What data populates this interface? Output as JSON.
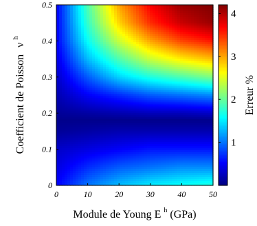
{
  "chart_data": {
    "type": "heatmap",
    "title": "",
    "x_axis": {
      "label": "Module de Young E",
      "label_superscript": "h",
      "label_unit": "(GPa)",
      "range": [
        0,
        50
      ],
      "ticks": [
        "0",
        "10",
        "20",
        "30",
        "40",
        "50"
      ],
      "tick_values": [
        0,
        10,
        20,
        30,
        40,
        50
      ]
    },
    "y_axis": {
      "label": "Coefficient de Poisson",
      "label_symbol": "ν",
      "label_superscript": "h",
      "range": [
        0,
        0.5
      ],
      "ticks": [
        "0",
        "0.1",
        "0.2",
        "0.3",
        "0.4",
        "0.5"
      ],
      "tick_values": [
        0,
        0.1,
        0.2,
        0.3,
        0.4,
        0.5
      ]
    },
    "colorbar": {
      "label": "Erreur %",
      "range": [
        0,
        4.2
      ],
      "ticks": [
        "1",
        "2",
        "3",
        "4"
      ],
      "tick_values": [
        1,
        2,
        3,
        4
      ],
      "colormap": "jet"
    },
    "x": [
      0,
      10,
      20,
      30,
      40,
      50
    ],
    "y": [
      0,
      0.05,
      0.1,
      0.15,
      0.18,
      0.2,
      0.25,
      0.3,
      0.35,
      0.4,
      0.45,
      0.5
    ],
    "z": [
      [
        0.5,
        1.0,
        1.3,
        1.5,
        1.6,
        1.7
      ],
      [
        0.4,
        0.7,
        0.9,
        1.0,
        1.1,
        1.1
      ],
      [
        0.3,
        0.4,
        0.5,
        0.6,
        0.6,
        0.6
      ],
      [
        0.1,
        0.15,
        0.2,
        0.2,
        0.2,
        0.2
      ],
      [
        0.05,
        0.05,
        0.05,
        0.05,
        0.05,
        0.05
      ],
      [
        0.1,
        0.15,
        0.2,
        0.25,
        0.25,
        0.3
      ],
      [
        0.2,
        0.5,
        0.7,
        0.9,
        1.0,
        1.1
      ],
      [
        0.3,
        0.9,
        1.4,
        1.7,
        1.9,
        2.1
      ],
      [
        0.4,
        1.3,
        1.9,
        2.4,
        2.7,
        2.9
      ],
      [
        0.5,
        1.6,
        2.4,
        3.0,
        3.4,
        3.6
      ],
      [
        0.5,
        1.8,
        2.8,
        3.5,
        3.9,
        4.1
      ],
      [
        0.5,
        1.9,
        3.0,
        3.7,
        4.1,
        4.2
      ]
    ],
    "grid": false,
    "legend": "colorbar-right"
  }
}
